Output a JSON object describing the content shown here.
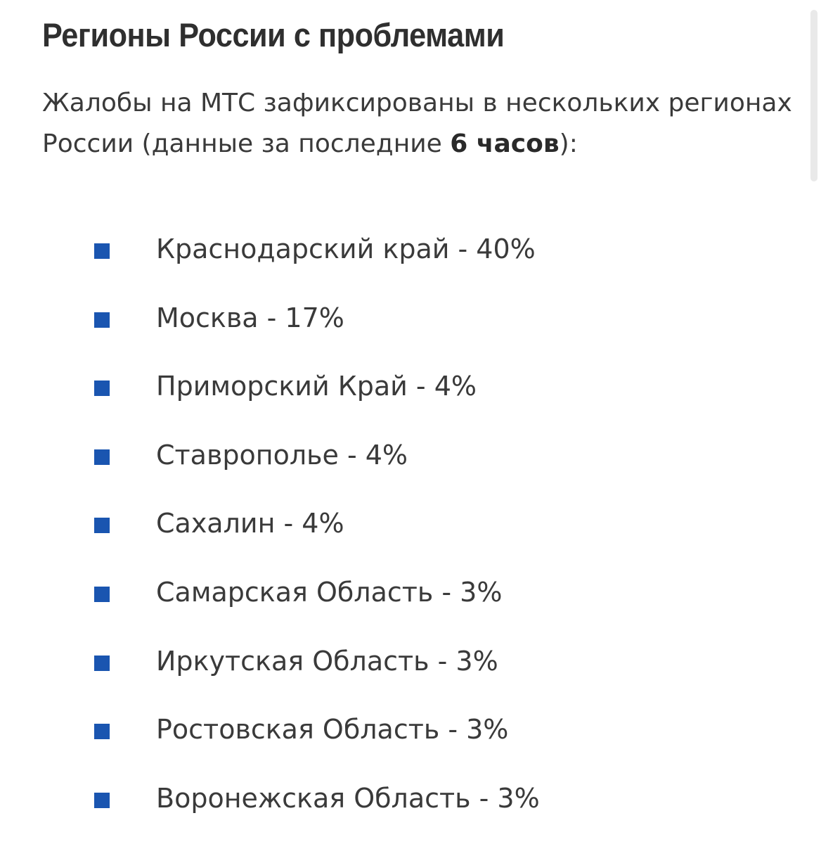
{
  "title": "Регионы России с проблемами",
  "intro": {
    "text_before": "Жалобы на МТС зафиксированы в нескольких регионах России (данные за последние ",
    "bold": "6 часов",
    "text_after": "):"
  },
  "bullet_color": "#1a55b0",
  "regions": [
    {
      "label": "Краснодарский край - 40%"
    },
    {
      "label": "Москва - 17%"
    },
    {
      "label": "Приморский Край - 4%"
    },
    {
      "label": "Ставрополье - 4%"
    },
    {
      "label": "Сахалин - 4%"
    },
    {
      "label": "Самарская Область - 3%"
    },
    {
      "label": "Иркутская Область - 3%"
    },
    {
      "label": "Ростовская Область - 3%"
    },
    {
      "label": "Воронежская Область - 3%"
    }
  ]
}
